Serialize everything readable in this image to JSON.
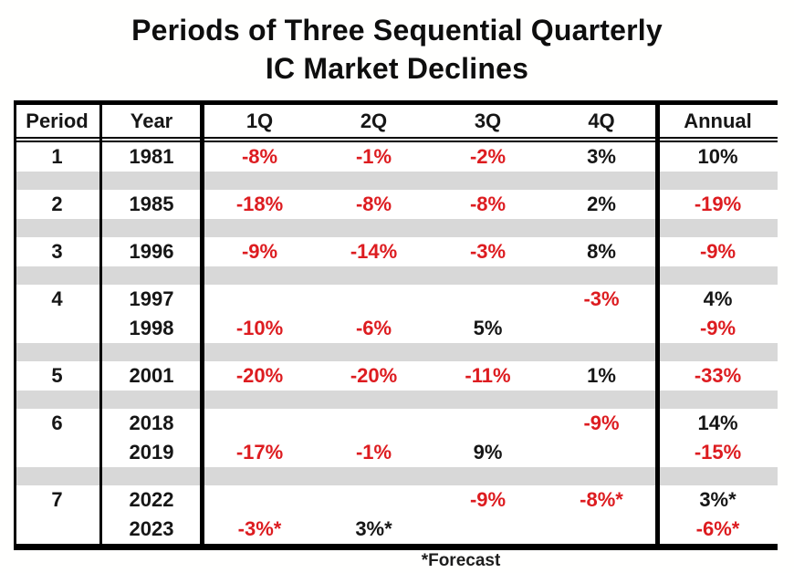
{
  "title": {
    "line1": "Periods of Three Sequential Quarterly",
    "line2": "IC Market Declines"
  },
  "colors": {
    "negative_value": "#dd1c20",
    "positive_value": "#161616",
    "separator_band": "#d8d8d8",
    "table_border": "#000000"
  },
  "chart_data": {
    "type": "table",
    "title": "Periods of Three Sequential Quarterly IC Market Declines",
    "columns": [
      "Period",
      "Year",
      "1Q",
      "2Q",
      "3Q",
      "4Q",
      "Annual"
    ],
    "rows": [
      [
        "1",
        "1981",
        "-8%",
        "-1%",
        "-2%",
        "3%",
        "10%"
      ],
      [
        "2",
        "1985",
        "-18%",
        "-8%",
        "-8%",
        "2%",
        "-19%"
      ],
      [
        "3",
        "1996",
        "-9%",
        "-14%",
        "-3%",
        "8%",
        "-9%"
      ],
      [
        "4",
        "1997",
        "",
        "",
        "",
        "-3%",
        "4%"
      ],
      [
        "",
        "1998",
        "-10%",
        "-6%",
        "5%",
        "",
        "-9%"
      ],
      [
        "5",
        "2001",
        "-20%",
        "-20%",
        "-11%",
        "1%",
        "-33%"
      ],
      [
        "6",
        "2018",
        "",
        "",
        "",
        "-9%",
        "14%"
      ],
      [
        "",
        "2019",
        "-17%",
        "-1%",
        "9%",
        "",
        "-15%"
      ],
      [
        "7",
        "2022",
        "",
        "",
        "-9%",
        "-8%*",
        "3%*"
      ],
      [
        "",
        "2023",
        "-3%*",
        "3%*",
        "",
        "",
        "-6%*"
      ]
    ],
    "row_groups": [
      [
        0
      ],
      [
        1
      ],
      [
        2
      ],
      [
        3,
        4
      ],
      [
        5
      ],
      [
        6,
        7
      ],
      [
        8,
        9
      ]
    ],
    "footnote": "*Forecast",
    "value_color_rule": "negative values rendered in red, others in black"
  }
}
